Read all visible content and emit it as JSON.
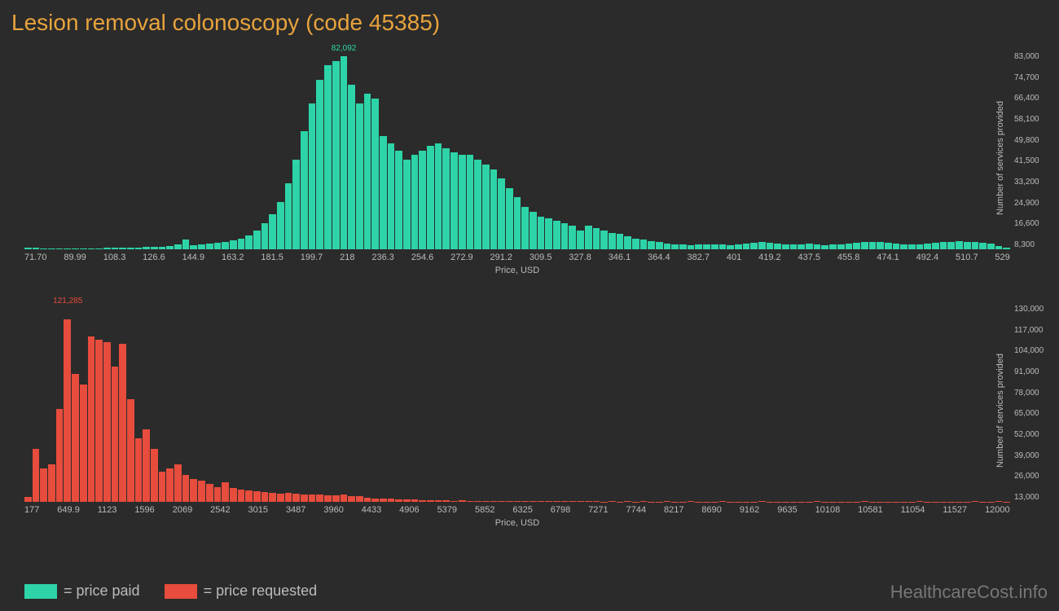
{
  "title": "Lesion removal colonoscopy (code 45385)",
  "watermark": "HealthcareCost.info",
  "y_axis_label": "Number of services provided",
  "x_axis_label": "Price, USD",
  "legend": [
    {
      "label": "= price paid",
      "color": "#2dd4a7"
    },
    {
      "label": "= price requested",
      "color": "#e74c3c"
    }
  ],
  "chart_paid": {
    "type": "histogram",
    "bar_color": "#2dd4a7",
    "peak_label": "82,092",
    "peak_index": 40,
    "ylim": [
      0,
      83000
    ],
    "y_ticks": [
      "83,000",
      "74,700",
      "66,400",
      "58,100",
      "49,800",
      "41,500",
      "33,200",
      "24,900",
      "16,600",
      "8,300"
    ],
    "x_ticks": [
      "71.70",
      "89.99",
      "108.3",
      "126.6",
      "144.9",
      "163.2",
      "181.5",
      "199.7",
      "218",
      "236.3",
      "254.6",
      "272.9",
      "291.2",
      "309.5",
      "327.8",
      "346.1",
      "364.4",
      "382.7",
      "401",
      "419.2",
      "437.5",
      "455.8",
      "474.1",
      "492.4",
      "510.7",
      "529"
    ],
    "values": [
      800,
      600,
      500,
      500,
      400,
      400,
      400,
      400,
      500,
      500,
      600,
      600,
      700,
      700,
      800,
      900,
      1000,
      1200,
      1500,
      2000,
      4000,
      1800,
      2200,
      2500,
      2800,
      3200,
      3800,
      4500,
      6000,
      8000,
      11000,
      15000,
      20000,
      28000,
      38000,
      50000,
      62000,
      72000,
      78000,
      80000,
      82092,
      70000,
      62000,
      66000,
      64000,
      48000,
      45000,
      42000,
      38000,
      40000,
      42000,
      44000,
      45000,
      43000,
      41000,
      40000,
      40000,
      38000,
      36000,
      34000,
      30000,
      26000,
      22000,
      18000,
      16000,
      14000,
      13000,
      12000,
      11000,
      10000,
      8000,
      10000,
      9000,
      8000,
      7000,
      6500,
      5500,
      4500,
      4000,
      3500,
      3000,
      2500,
      2200,
      2000,
      1800,
      2000,
      2000,
      2200,
      2000,
      1800,
      2200,
      2500,
      2800,
      3000,
      2800,
      2500,
      2200,
      2000,
      2200,
      2500,
      2000,
      1800,
      2000,
      2200,
      2500,
      2800,
      3000,
      3200,
      3000,
      2800,
      2500,
      2200,
      2000,
      2200,
      2500,
      2800,
      3000,
      3200,
      3500,
      3200,
      3000,
      2800,
      2500,
      1500,
      800
    ]
  },
  "chart_requested": {
    "type": "histogram",
    "bar_color": "#e74c3c",
    "peak_label": "121,285",
    "peak_index": 5,
    "ylim": [
      0,
      130000
    ],
    "y_ticks": [
      "130,000",
      "117,000",
      "104,000",
      "91,000",
      "78,000",
      "65,000",
      "52,000",
      "39,000",
      "26,000",
      "13,000"
    ],
    "x_ticks": [
      "177",
      "649.9",
      "1123",
      "1596",
      "2069",
      "2542",
      "3015",
      "3487",
      "3960",
      "4433",
      "4906",
      "5379",
      "5852",
      "6325",
      "6798",
      "7271",
      "7744",
      "8217",
      "8690",
      "9162",
      "9635",
      "10108",
      "10581",
      "11054",
      "11527",
      "12000"
    ],
    "values": [
      3000,
      35000,
      22000,
      25000,
      62000,
      121285,
      85000,
      78000,
      110000,
      108000,
      106000,
      90000,
      105000,
      68000,
      42000,
      48000,
      35000,
      20000,
      22000,
      25000,
      18000,
      15000,
      14000,
      12000,
      10000,
      13000,
      9000,
      8000,
      7500,
      7000,
      6500,
      6000,
      5500,
      6000,
      5500,
      5000,
      4800,
      5000,
      4500,
      4200,
      5000,
      4000,
      3800,
      2500,
      2000,
      2200,
      2000,
      1800,
      1500,
      1500,
      1200,
      1000,
      1200,
      1000,
      800,
      900,
      800,
      700,
      600,
      800,
      600,
      500,
      600,
      500,
      400,
      500,
      400,
      300,
      400,
      300,
      300,
      400,
      300,
      200,
      300,
      200,
      300,
      200,
      300,
      200,
      200,
      300,
      200,
      200,
      300,
      200,
      200,
      200,
      300,
      200,
      200,
      200,
      200,
      300,
      200,
      200,
      200,
      200,
      200,
      200,
      300,
      200,
      200,
      200,
      200,
      200,
      300,
      200,
      200,
      200,
      200,
      200,
      200,
      300,
      200,
      200,
      200,
      200,
      200,
      200,
      300,
      200,
      200,
      300,
      200
    ]
  }
}
